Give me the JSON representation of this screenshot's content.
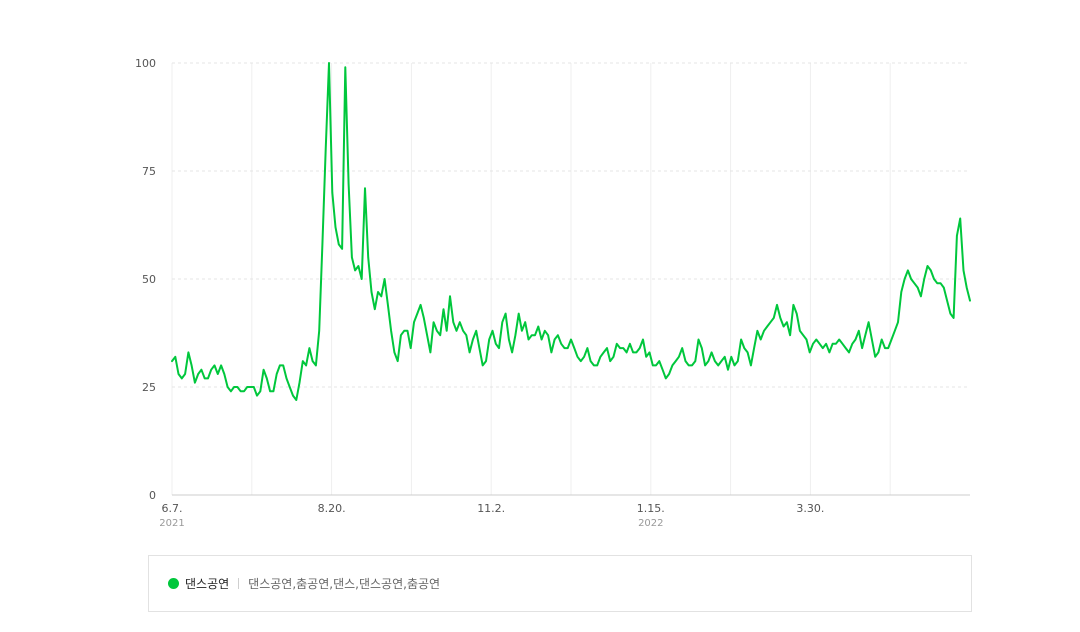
{
  "chart_data": {
    "type": "line",
    "ylim": [
      0,
      100
    ],
    "yticks": [
      "0",
      "25",
      "50",
      "75",
      "100"
    ],
    "xticks": [
      {
        "label": "6.7.",
        "year": "2021",
        "date": "2021-06-07"
      },
      {
        "label": "8.20.",
        "year": "",
        "date": "2021-08-20"
      },
      {
        "label": "11.2.",
        "year": "",
        "date": "2021-11-02"
      },
      {
        "label": "1.15.",
        "year": "2022",
        "date": "2022-01-15"
      },
      {
        "label": "3.30.",
        "year": "",
        "date": "2022-03-30"
      }
    ],
    "grid": true,
    "x_start": "2021-06-07",
    "x_end": "2022-06-12",
    "series": [
      {
        "name": "댄스공연",
        "color": "#00c73c",
        "values": [
          31,
          32,
          28,
          27,
          28,
          33,
          30,
          26,
          28,
          29,
          27,
          27,
          29,
          30,
          28,
          30,
          28,
          25,
          24,
          25,
          25,
          24,
          24,
          25,
          25,
          25,
          23,
          24,
          29,
          27,
          24,
          24,
          28,
          30,
          30,
          27,
          25,
          23,
          22,
          26,
          31,
          30,
          34,
          31,
          30,
          38,
          58,
          80,
          100,
          70,
          62,
          58,
          57,
          99,
          72,
          55,
          52,
          53,
          50,
          71,
          55,
          47,
          43,
          47,
          46,
          50,
          44,
          38,
          33,
          31,
          37,
          38,
          38,
          34,
          40,
          42,
          44,
          41,
          37,
          33,
          40,
          38,
          37,
          43,
          38,
          46,
          40,
          38,
          40,
          38,
          37,
          33,
          36,
          38,
          34,
          30,
          31,
          36,
          38,
          35,
          34,
          40,
          42,
          36,
          33,
          37,
          42,
          38,
          40,
          36,
          37,
          37,
          39,
          36,
          38,
          37,
          33,
          36,
          37,
          35,
          34,
          34,
          36,
          34,
          32,
          31,
          32,
          34,
          31,
          30,
          30,
          32,
          33,
          34,
          31,
          32,
          35,
          34,
          34,
          33,
          35,
          33,
          33,
          34,
          36,
          32,
          33,
          30,
          30,
          31,
          29,
          27,
          28,
          30,
          31,
          32,
          34,
          31,
          30,
          30,
          31,
          36,
          34,
          30,
          31,
          33,
          31,
          30,
          31,
          32,
          29,
          32,
          30,
          31,
          36,
          34,
          33,
          30,
          34,
          38,
          36,
          38,
          39,
          40,
          41,
          44,
          41,
          39,
          40,
          37,
          44,
          42,
          38,
          37,
          36,
          33,
          35,
          36,
          35,
          34,
          35,
          33,
          35,
          35,
          36,
          35,
          34,
          33,
          35,
          36,
          38,
          34,
          37,
          40,
          36,
          32,
          33,
          36,
          34,
          34,
          36,
          38,
          40,
          47,
          50,
          52,
          50,
          49,
          48,
          46,
          50,
          53,
          52,
          50,
          49,
          49,
          48,
          45,
          42,
          41,
          60,
          64,
          52,
          48,
          45
        ]
      }
    ]
  },
  "legend": {
    "name": "댄스공연",
    "keywords": "댄스공연,춤공연,댄스,댄스공연,춤공연",
    "color": "#00c73c"
  }
}
